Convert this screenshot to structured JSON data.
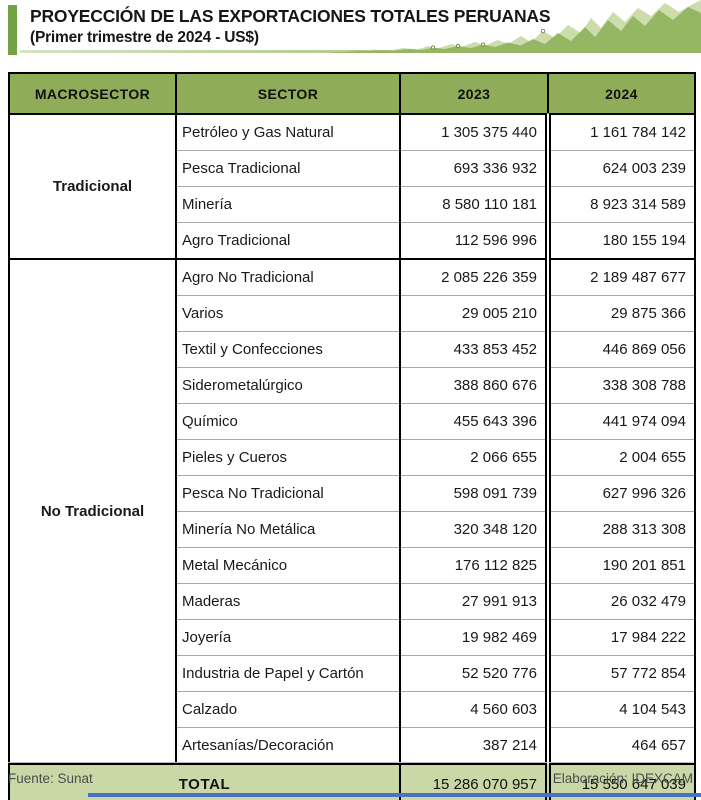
{
  "header": {
    "title": "PROYECCIÓN DE LAS EXPORTACIONES TOTALES PERUANAS",
    "subtitle": "(Primer trimestre de 2024 - US$)"
  },
  "table": {
    "headers": {
      "macrosector": "MACROSECTOR",
      "sector": "SECTOR",
      "y2023": "2023",
      "y2024": "2024"
    },
    "groups": [
      {
        "macrosector": "Tradicional",
        "rows": [
          {
            "sector": "Petróleo y Gas Natural",
            "y2023": "1 305 375 440",
            "y2024": "1 161 784 142"
          },
          {
            "sector": "Pesca Tradicional",
            "y2023": "693 336 932",
            "y2024": "624 003 239"
          },
          {
            "sector": "Minería",
            "y2023": "8 580 110 181",
            "y2024": "8 923 314 589"
          },
          {
            "sector": "Agro Tradicional",
            "y2023": "112 596 996",
            "y2024": "180 155 194"
          }
        ]
      },
      {
        "macrosector": "No Tradicional",
        "rows": [
          {
            "sector": "Agro No Tradicional",
            "y2023": "2 085 226 359",
            "y2024": "2 189 487 677"
          },
          {
            "sector": "Varios",
            "y2023": "29 005 210",
            "y2024": "29 875 366"
          },
          {
            "sector": "Textil y Confecciones",
            "y2023": "433 853 452",
            "y2024": "446 869 056"
          },
          {
            "sector": "Siderometalúrgico",
            "y2023": "388 860 676",
            "y2024": "338 308 788"
          },
          {
            "sector": "Químico",
            "y2023": "455 643 396",
            "y2024": "441 974 094"
          },
          {
            "sector": "Pieles y Cueros",
            "y2023": "2 066 655",
            "y2024": "2 004 655"
          },
          {
            "sector": "Pesca No Tradicional",
            "y2023": "598 091 739",
            "y2024": "627 996 326"
          },
          {
            "sector": "Minería No Metálica",
            "y2023": "320 348 120",
            "y2024": "288 313 308"
          },
          {
            "sector": "Metal Mecánico",
            "y2023": "176 112 825",
            "y2024": "190 201 851"
          },
          {
            "sector": "Maderas",
            "y2023": "27 991 913",
            "y2024": "26 032 479"
          },
          {
            "sector": "Joyería",
            "y2023": "19 982 469",
            "y2024": "17 984 222"
          },
          {
            "sector": "Industria de Papel y Cartón",
            "y2023": "52 520 776",
            "y2024": "57 772 854"
          },
          {
            "sector": "Calzado",
            "y2023": "4 560 603",
            "y2024": "4 104 543"
          },
          {
            "sector": "Artesanías/Decoración",
            "y2023": "387 214",
            "y2024": "464 657"
          }
        ]
      }
    ],
    "total": {
      "label": "TOTAL",
      "y2023": "15 286 070 957",
      "y2024": "15 550 647 039"
    }
  },
  "footer": {
    "source": "Fuente: Sunat",
    "elaboration": "Elaboración: IDEXCAM"
  },
  "colors": {
    "header_green": "#8fad58",
    "total_row_green": "#c9d8a6",
    "accent_green": "#73a242",
    "area_light_green": "#c9dba6",
    "area_mid_green": "#8fb35c",
    "row_divider_gray": "#a8a8a8",
    "bottom_bar_blue": "#4a72c4"
  },
  "chart_data": {
    "type": "table",
    "title": "PROYECCIÓN DE LAS EXPORTACIONES TOTALES PERUANAS (Primer trimestre de 2024 - US$)",
    "columns": [
      "MACROSECTOR",
      "SECTOR",
      "2023",
      "2024"
    ],
    "rows": [
      [
        "Tradicional",
        "Petróleo y Gas Natural",
        1305375440,
        1161784142
      ],
      [
        "Tradicional",
        "Pesca Tradicional",
        693336932,
        624003239
      ],
      [
        "Tradicional",
        "Minería",
        8580110181,
        8923314589
      ],
      [
        "Tradicional",
        "Agro Tradicional",
        112596996,
        180155194
      ],
      [
        "No Tradicional",
        "Agro No Tradicional",
        2085226359,
        2189487677
      ],
      [
        "No Tradicional",
        "Varios",
        29005210,
        29875366
      ],
      [
        "No Tradicional",
        "Textil y Confecciones",
        433853452,
        446869056
      ],
      [
        "No Tradicional",
        "Siderometalúrgico",
        388860676,
        338308788
      ],
      [
        "No Tradicional",
        "Químico",
        455643396,
        441974094
      ],
      [
        "No Tradicional",
        "Pieles y Cueros",
        2066655,
        2004655
      ],
      [
        "No Tradicional",
        "Pesca No Tradicional",
        598091739,
        627996326
      ],
      [
        "No Tradicional",
        "Minería No Metálica",
        320348120,
        288313308
      ],
      [
        "No Tradicional",
        "Metal Mecánico",
        176112825,
        190201851
      ],
      [
        "No Tradicional",
        "Maderas",
        27991913,
        26032479
      ],
      [
        "No Tradicional",
        "Joyería",
        19982469,
        17984222
      ],
      [
        "No Tradicional",
        "Industria de Papel y Cartón",
        52520776,
        57772854
      ],
      [
        "No Tradicional",
        "Calzado",
        4560603,
        4104543
      ],
      [
        "No Tradicional",
        "Artesanías/Decoración",
        387214,
        464657
      ]
    ],
    "total_row": [
      "TOTAL",
      15286070957,
      15550647039
    ]
  }
}
